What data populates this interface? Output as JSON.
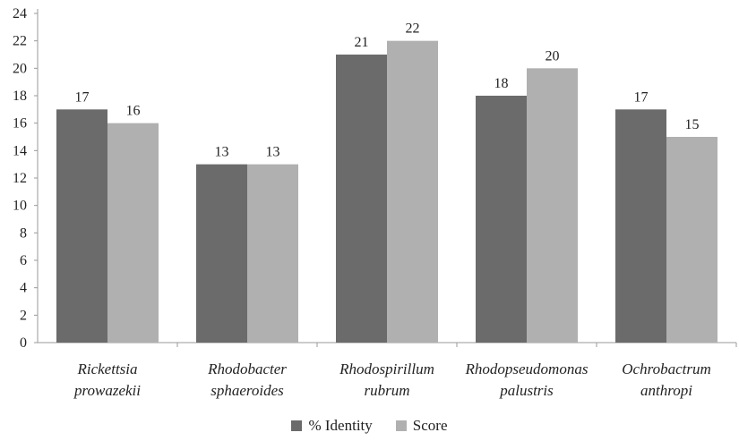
{
  "chart_data": {
    "type": "bar",
    "categories": [
      [
        "Rickettsia",
        "prowazekii"
      ],
      [
        "Rhodobacter",
        "sphaeroides"
      ],
      [
        "Rhodospirillum",
        "rubrum"
      ],
      [
        "Rhodopseudomonas",
        "palustris"
      ],
      [
        "Ochrobactrum",
        "anthropi"
      ]
    ],
    "series": [
      {
        "name": "% Identity",
        "values": [
          17,
          13,
          21,
          18,
          17
        ],
        "color": "#6b6b6b"
      },
      {
        "name": "Score",
        "values": [
          16,
          13,
          22,
          20,
          15
        ],
        "color": "#b0b0b0"
      }
    ],
    "ylim": [
      0,
      24
    ],
    "yticks": [
      "0",
      "2",
      "4",
      "6",
      "8",
      "10",
      "12",
      "14",
      "16",
      "18",
      "20",
      "22",
      "24"
    ],
    "grid": false,
    "legend_position": "bottom"
  }
}
